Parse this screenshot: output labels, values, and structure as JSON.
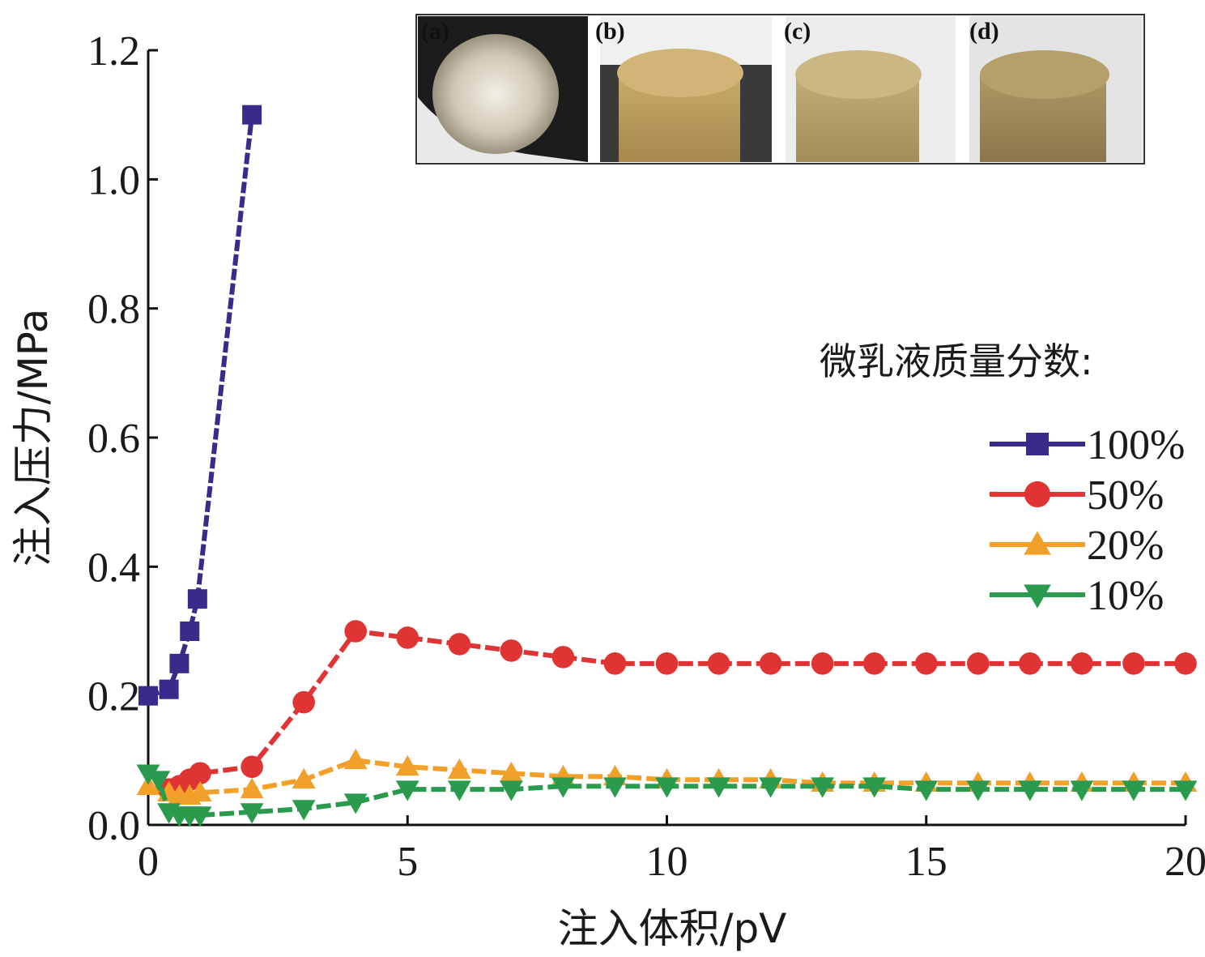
{
  "chart_data": {
    "type": "line",
    "xlabel": "注入体积/pV",
    "ylabel": "注入压力/MPa",
    "xlim": [
      0,
      20
    ],
    "ylim": [
      0,
      1.2
    ],
    "x_ticks": [
      0,
      5,
      10,
      15,
      20
    ],
    "x_tick_labels": [
      "0",
      "5",
      "10",
      "15",
      "20"
    ],
    "y_ticks": [
      0,
      0.2,
      0.4,
      0.6,
      0.8,
      1.0,
      1.2
    ],
    "y_tick_labels": [
      "0.0",
      "0.2",
      "0.4",
      "0.6",
      "0.8",
      "1.0",
      "1.2"
    ],
    "grid": false,
    "legend_title": "微乳液质量分数:",
    "legend_position": "right",
    "series": [
      {
        "name": "100%",
        "color": "#3b2a8a",
        "marker": "square",
        "x": [
          0,
          0.4,
          0.6,
          0.8,
          0.95,
          2
        ],
        "y": [
          0.2,
          0.21,
          0.25,
          0.3,
          0.35,
          1.1
        ]
      },
      {
        "name": "50%",
        "color": "#e03434",
        "marker": "circle",
        "x": [
          0.4,
          0.6,
          0.8,
          1,
          2,
          3,
          4,
          5,
          6,
          7,
          8,
          9,
          10,
          11,
          12,
          13,
          14,
          15,
          16,
          17,
          18,
          19,
          20
        ],
        "y": [
          0.055,
          0.06,
          0.07,
          0.08,
          0.09,
          0.19,
          0.3,
          0.29,
          0.28,
          0.27,
          0.26,
          0.25,
          0.25,
          0.25,
          0.25,
          0.25,
          0.25,
          0.25,
          0.25,
          0.25,
          0.25,
          0.25,
          0.25
        ]
      },
      {
        "name": "20%",
        "color": "#f3a02b",
        "marker": "triangle-up",
        "x": [
          0,
          0.4,
          0.6,
          0.8,
          1,
          2,
          3,
          4,
          5,
          6,
          7,
          8,
          9,
          10,
          11,
          12,
          13,
          14,
          15,
          16,
          17,
          18,
          19,
          20
        ],
        "y": [
          0.06,
          0.05,
          0.045,
          0.045,
          0.05,
          0.055,
          0.07,
          0.1,
          0.09,
          0.085,
          0.08,
          0.075,
          0.075,
          0.07,
          0.07,
          0.07,
          0.065,
          0.065,
          0.065,
          0.065,
          0.065,
          0.065,
          0.065,
          0.065
        ]
      },
      {
        "name": "10%",
        "color": "#2a9a4e",
        "marker": "triangle-down",
        "x": [
          0,
          0.2,
          0.4,
          0.6,
          0.8,
          1,
          2,
          3,
          4,
          5,
          6,
          7,
          8,
          9,
          10,
          11,
          12,
          13,
          14,
          15,
          16,
          17,
          18,
          19,
          20
        ],
        "y": [
          0.08,
          0.07,
          0.02,
          0.015,
          0.015,
          0.015,
          0.02,
          0.025,
          0.035,
          0.055,
          0.055,
          0.055,
          0.06,
          0.06,
          0.06,
          0.06,
          0.06,
          0.06,
          0.06,
          0.055,
          0.055,
          0.055,
          0.055,
          0.055,
          0.055
        ]
      }
    ]
  },
  "inset": {
    "panels": [
      {
        "label": "(a)",
        "description_color": "#dcd6c8"
      },
      {
        "label": "(b)",
        "description_color": "#b99a5a"
      },
      {
        "label": "(c)",
        "description_color": "#b49c68"
      },
      {
        "label": "(d)",
        "description_color": "#9a8658"
      }
    ]
  }
}
